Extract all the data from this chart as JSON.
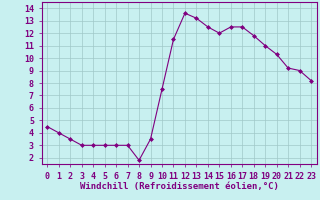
{
  "x": [
    0,
    1,
    2,
    3,
    4,
    5,
    6,
    7,
    8,
    9,
    10,
    11,
    12,
    13,
    14,
    15,
    16,
    17,
    18,
    19,
    20,
    21,
    22,
    23
  ],
  "y": [
    4.5,
    4.0,
    3.5,
    3.0,
    3.0,
    3.0,
    3.0,
    3.0,
    1.8,
    3.5,
    7.5,
    11.5,
    13.6,
    13.2,
    12.5,
    12.0,
    12.5,
    12.5,
    11.8,
    11.0,
    10.3,
    9.2,
    9.0,
    8.2
  ],
  "line_color": "#800080",
  "marker": "D",
  "marker_size": 2,
  "bg_color": "#c8f0f0",
  "grid_color": "#a0c8c8",
  "xlabel": "Windchill (Refroidissement éolien,°C)",
  "xlim": [
    -0.5,
    23.5
  ],
  "ylim": [
    1.5,
    14.5
  ],
  "yticks": [
    2,
    3,
    4,
    5,
    6,
    7,
    8,
    9,
    10,
    11,
    12,
    13,
    14
  ],
  "xticks": [
    0,
    1,
    2,
    3,
    4,
    5,
    6,
    7,
    8,
    9,
    10,
    11,
    12,
    13,
    14,
    15,
    16,
    17,
    18,
    19,
    20,
    21,
    22,
    23
  ],
  "tick_color": "#800080",
  "axis_color": "#800080",
  "xlabel_fontsize": 6.5,
  "tick_fontsize": 6
}
